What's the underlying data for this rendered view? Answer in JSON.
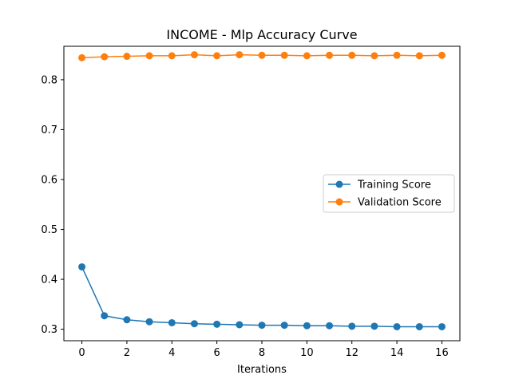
{
  "chart_data": {
    "type": "line",
    "title": "INCOME - Mlp Accuracy Curve",
    "xlabel": "Iterations",
    "ylabel": "",
    "xlim": [
      -0.8,
      16.8
    ],
    "ylim": [
      0.277,
      0.867
    ],
    "xticks": [
      0,
      2,
      4,
      6,
      8,
      10,
      12,
      14,
      16
    ],
    "yticks": [
      0.3,
      0.4,
      0.5,
      0.6,
      0.7,
      0.8
    ],
    "grid": false,
    "legend_position": "center-right",
    "x": [
      0,
      1,
      2,
      3,
      4,
      5,
      6,
      7,
      8,
      9,
      10,
      11,
      12,
      13,
      14,
      15,
      16
    ],
    "series": [
      {
        "name": "Training Score",
        "color": "#1f77b4",
        "marker": "circle",
        "values": [
          0.425,
          0.327,
          0.319,
          0.315,
          0.313,
          0.311,
          0.31,
          0.309,
          0.308,
          0.308,
          0.307,
          0.307,
          0.306,
          0.306,
          0.305,
          0.305,
          0.305
        ]
      },
      {
        "name": "Validation Score",
        "color": "#ff7f0e",
        "marker": "circle",
        "values": [
          0.844,
          0.846,
          0.847,
          0.848,
          0.848,
          0.85,
          0.848,
          0.85,
          0.849,
          0.849,
          0.848,
          0.849,
          0.849,
          0.848,
          0.849,
          0.848,
          0.849
        ]
      }
    ]
  }
}
